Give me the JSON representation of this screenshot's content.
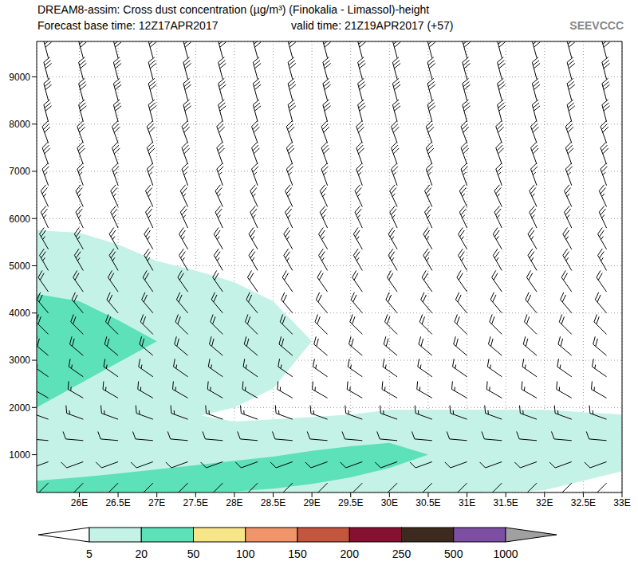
{
  "chart_data": {
    "type": "contourf",
    "title": "DREAM8-assim: Cross dust concentration (µg/m³) (Finokalia - Limassol)-height",
    "subtitle": [
      "Forecast base time: 12Z17APR2017",
      "valid time: 21Z19APR2017 (+57)"
    ],
    "annotations": [
      "SEEVCCC"
    ],
    "grid": true,
    "xlim": [
      25.45,
      33
    ],
    "xticks": [
      {
        "value": 26,
        "label": "26E"
      },
      {
        "value": 26.5,
        "label": "26.5E"
      },
      {
        "value": 27,
        "label": "27E"
      },
      {
        "value": 27.5,
        "label": "27.5E"
      },
      {
        "value": 28,
        "label": "28E"
      },
      {
        "value": 28.5,
        "label": "28.5E"
      },
      {
        "value": 29,
        "label": "29E"
      },
      {
        "value": 29.5,
        "label": "29.5E"
      },
      {
        "value": 30,
        "label": "30E"
      },
      {
        "value": 30.5,
        "label": "30.5E"
      },
      {
        "value": 31,
        "label": "31E"
      },
      {
        "value": 31.5,
        "label": "31.5E"
      },
      {
        "value": 32,
        "label": "32E"
      },
      {
        "value": 32.5,
        "label": "32.5E"
      },
      {
        "value": 33,
        "label": "33E"
      }
    ],
    "ylim": [
      200,
      9750
    ],
    "yticks": [
      1000,
      2000,
      3000,
      4000,
      5000,
      6000,
      7000,
      8000,
      9000
    ],
    "colorbar": {
      "levels": [
        5,
        20,
        50,
        100,
        150,
        200,
        250,
        500,
        1000
      ],
      "colors": [
        "#c4f2e7",
        "#5ce1b8",
        "#f6e688",
        "#f1946a",
        "#c4563f",
        "#86102f",
        "#3d2a1e",
        "#7c4fa3"
      ]
    },
    "x": [
      25.45,
      26,
      26.5,
      27,
      27.5,
      28,
      28.5,
      29,
      29.5,
      30,
      30.5,
      31,
      31.5,
      32,
      32.5,
      33
    ],
    "regions": [
      {
        "level": 5,
        "low": [
          1950,
          1950,
          1950,
          1950,
          1800,
          2000,
          2400,
          3400,
          null,
          null,
          null,
          null,
          null,
          null,
          null,
          null
        ],
        "high": [
          5750,
          5700,
          5450,
          5100,
          4900,
          4650,
          4250,
          3400,
          null,
          null,
          null,
          null,
          null,
          null,
          null,
          null
        ]
      },
      {
        "level": 5,
        "low": [
          200,
          200,
          200,
          200,
          200,
          200,
          200,
          200,
          200,
          200,
          200,
          200,
          200,
          250,
          450,
          650
        ],
        "high": [
          2000,
          2000,
          2000,
          2000,
          1850,
          1700,
          1750,
          1800,
          1850,
          1950,
          1950,
          1950,
          1950,
          1950,
          1900,
          1850
        ]
      },
      {
        "level": 20,
        "low": [
          2000,
          2500,
          2950,
          3400,
          null,
          null,
          null,
          null,
          null,
          null,
          null,
          null,
          null,
          null,
          null,
          null
        ],
        "high": [
          4400,
          4250,
          3850,
          3400,
          null,
          null,
          null,
          null,
          null,
          null,
          null,
          null,
          null,
          null,
          null,
          null
        ]
      },
      {
        "level": 20,
        "low": [
          200,
          200,
          200,
          200,
          200,
          220,
          280,
          380,
          520,
          720,
          1000,
          null,
          null,
          null,
          null,
          null
        ],
        "high": [
          450,
          520,
          600,
          690,
          780,
          870,
          960,
          1080,
          1180,
          1250,
          1000,
          null,
          null,
          null,
          null,
          null
        ]
      }
    ],
    "wind": {
      "x": [
        25.6,
        26.05,
        26.5,
        26.95,
        27.4,
        27.85,
        28.3,
        28.75,
        29.2,
        29.65,
        30.1,
        30.55,
        31.0,
        31.45,
        31.9,
        32.35,
        32.8
      ],
      "heights": [
        400,
        850,
        1300,
        1750,
        2200,
        2650,
        3100,
        3550,
        4000,
        4450,
        4900,
        5350,
        5800,
        6250,
        6700,
        7150,
        7600,
        8050,
        8500,
        8950,
        9400
      ],
      "direction": [
        225,
        250,
        275,
        290,
        300,
        305,
        310,
        315,
        320,
        325,
        330,
        330,
        335,
        335,
        340,
        340,
        340,
        345,
        345,
        345,
        345
      ],
      "speed": [
        10,
        10,
        10,
        15,
        15,
        15,
        20,
        20,
        20,
        20,
        25,
        25,
        25,
        25,
        25,
        30,
        30,
        30,
        30,
        30,
        30
      ]
    }
  }
}
